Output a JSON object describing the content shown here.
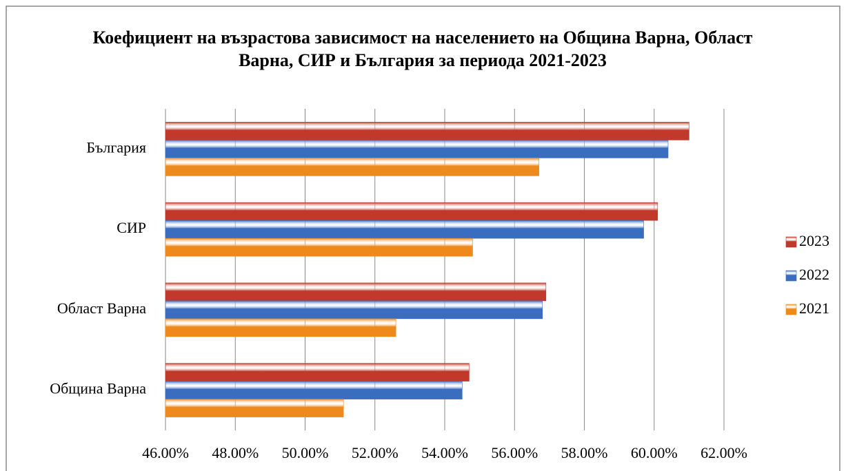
{
  "chart_data": {
    "type": "barh",
    "title": "Коефициент на възрастова зависимост на населението на Община Варна, Област Варна, СИР и България за периода 2021-2023",
    "categories": [
      "Община Варна",
      "Област Варна",
      "СИР",
      "България"
    ],
    "series": [
      {
        "name": "2023",
        "color": "#c0392b",
        "values": [
          54.7,
          56.9,
          60.1,
          61.0
        ]
      },
      {
        "name": "2022",
        "color": "#3a6cc0",
        "values": [
          54.5,
          56.8,
          59.7,
          60.4
        ]
      },
      {
        "name": "2021",
        "color": "#ee8a1c",
        "values": [
          51.1,
          52.6,
          54.8,
          56.7
        ]
      }
    ],
    "xlim": [
      46,
      62
    ],
    "xticks": [
      {
        "value": 46,
        "label": "46.00%"
      },
      {
        "value": 48,
        "label": "48.00%"
      },
      {
        "value": 50,
        "label": "50.00%"
      },
      {
        "value": 52,
        "label": "52.00%"
      },
      {
        "value": 54,
        "label": "54.00%"
      },
      {
        "value": 56,
        "label": "56.00%"
      },
      {
        "value": 58,
        "label": "58.00%"
      },
      {
        "value": 60,
        "label": "60.00%"
      },
      {
        "value": 62,
        "label": "62.00%"
      }
    ],
    "grid": true,
    "legend": "right"
  }
}
